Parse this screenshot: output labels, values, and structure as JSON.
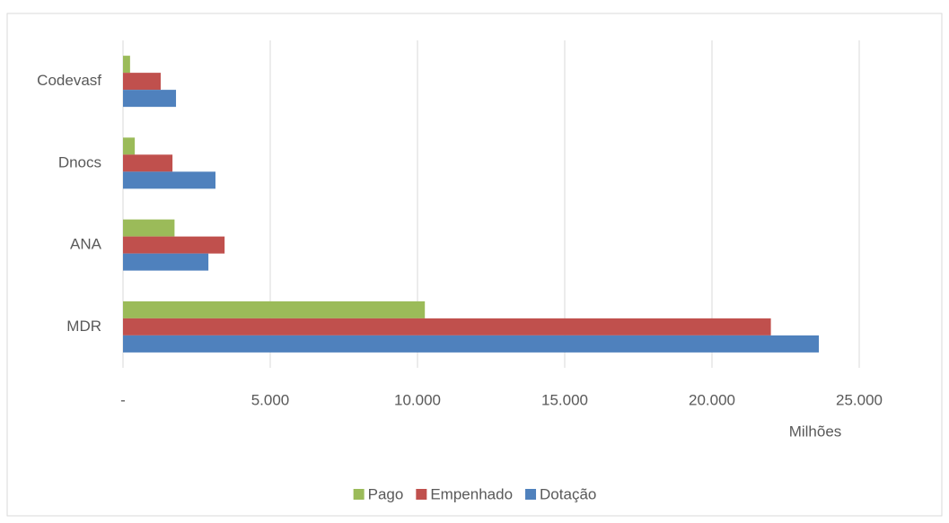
{
  "chart_data": {
    "type": "bar",
    "orientation": "horizontal",
    "x_axis_label": "Milhões",
    "categories": [
      "MDR",
      "ANA",
      "Dnocs",
      "Codevasf"
    ],
    "series": [
      {
        "name": "Pago",
        "color": "#9bbb59",
        "values": [
          10250,
          1750,
          400,
          240
        ]
      },
      {
        "name": "Empenhado",
        "color": "#c0504d",
        "values": [
          22000,
          3450,
          1680,
          1280
        ]
      },
      {
        "name": "Dotação",
        "color": "#4f81bd",
        "values": [
          23630,
          2900,
          3140,
          1800
        ]
      }
    ],
    "xlim": [
      0,
      25000
    ],
    "xticks": [
      {
        "value": 0,
        "label": "-"
      },
      {
        "value": 5000,
        "label": "5.000"
      },
      {
        "value": 10000,
        "label": "10.000"
      },
      {
        "value": 15000,
        "label": "15.000"
      },
      {
        "value": 20000,
        "label": "20.000"
      },
      {
        "value": 25000,
        "label": "25.000"
      }
    ],
    "grid": true,
    "legend": "bottom"
  }
}
